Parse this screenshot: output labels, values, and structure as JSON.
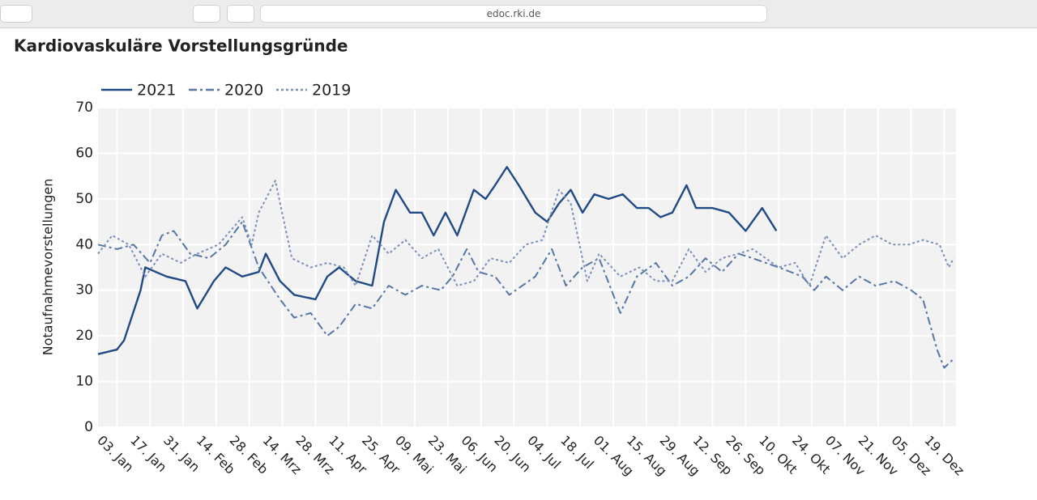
{
  "browser": {
    "url": "edoc.rki.de"
  },
  "chart_data": {
    "type": "line",
    "title": "Kardiovaskuläre Vorstellungsgründe",
    "ylabel": "Notaufnahmevorstellungen",
    "xlim": [
      -8,
      355
    ],
    "ylim": [
      0,
      70
    ],
    "yticks": [
      0,
      10,
      20,
      30,
      40,
      50,
      60,
      70
    ],
    "xticks": [
      {
        "value": 0,
        "label": "03. Jan"
      },
      {
        "value": 14,
        "label": "17. Jan"
      },
      {
        "value": 28,
        "label": "31. Jan"
      },
      {
        "value": 42,
        "label": "14. Feb"
      },
      {
        "value": 56,
        "label": "28. Feb"
      },
      {
        "value": 70,
        "label": "14. Mrz"
      },
      {
        "value": 84,
        "label": "28. Mrz"
      },
      {
        "value": 98,
        "label": "11. Apr"
      },
      {
        "value": 112,
        "label": "25. Apr"
      },
      {
        "value": 126,
        "label": "09. Mai"
      },
      {
        "value": 140,
        "label": "23. Mai"
      },
      {
        "value": 154,
        "label": "06. Jun"
      },
      {
        "value": 168,
        "label": "20. Jun"
      },
      {
        "value": 182,
        "label": "04. Jul"
      },
      {
        "value": 196,
        "label": "18. Jul"
      },
      {
        "value": 210,
        "label": "01. Aug"
      },
      {
        "value": 224,
        "label": "15. Aug"
      },
      {
        "value": 238,
        "label": "29. Aug"
      },
      {
        "value": 252,
        "label": "12. Sep"
      },
      {
        "value": 266,
        "label": "26. Sep"
      },
      {
        "value": 280,
        "label": "10. Okt"
      },
      {
        "value": 294,
        "label": "24. Okt"
      },
      {
        "value": 308,
        "label": "07. Nov"
      },
      {
        "value": 322,
        "label": "21. Nov"
      },
      {
        "value": 336,
        "label": "05. Dez"
      },
      {
        "value": 350,
        "label": "19. Dez"
      }
    ],
    "grid": true,
    "legend": "top-left",
    "series": [
      {
        "name": "2021",
        "color": "#1f4a85",
        "dash": "solid",
        "x": [
          -8,
          0,
          3,
          10,
          12,
          21,
          29,
          34,
          41,
          46,
          53,
          60,
          63,
          69,
          75,
          84,
          89,
          94,
          101,
          108,
          113,
          118,
          124,
          129,
          134,
          139,
          144,
          151,
          156,
          160,
          165,
          170,
          177,
          182,
          187,
          192,
          197,
          202,
          208,
          214,
          220,
          225,
          230,
          235,
          241,
          245,
          252,
          259,
          266,
          273,
          279
        ],
        "values": [
          16,
          17,
          19,
          30,
          35,
          33,
          32,
          26,
          32,
          35,
          33,
          34,
          38,
          32,
          29,
          28,
          33,
          35,
          32,
          31,
          45,
          52,
          47,
          47,
          42,
          47,
          42,
          52,
          50,
          53,
          57,
          53,
          47,
          45,
          49,
          52,
          47,
          51,
          50,
          51,
          48,
          48,
          46,
          47,
          53,
          48,
          48,
          47,
          43,
          48,
          43
        ]
      },
      {
        "name": "2020",
        "color": "#5676a6",
        "dash": "dashdot",
        "x": [
          -8,
          0,
          7,
          14,
          19,
          24,
          31,
          39,
          46,
          53,
          60,
          69,
          75,
          82,
          89,
          94,
          101,
          108,
          115,
          122,
          129,
          137,
          142,
          148,
          153,
          160,
          166,
          177,
          184,
          190,
          197,
          204,
          213,
          220,
          228,
          235,
          242,
          249,
          256,
          263,
          269,
          280,
          290,
          295,
          300,
          307,
          314,
          321,
          329,
          336,
          341,
          347,
          350,
          354
        ],
        "values": [
          40,
          39,
          40,
          36,
          42,
          43,
          38,
          37,
          40,
          45,
          35,
          28,
          24,
          25,
          20,
          22,
          27,
          26,
          31,
          29,
          31,
          30,
          33,
          39,
          34,
          33,
          29,
          33,
          39,
          31,
          35,
          37,
          25,
          33,
          36,
          31,
          33,
          37,
          34,
          38,
          37,
          35,
          33,
          30,
          33,
          30,
          33,
          31,
          32,
          30,
          28,
          17,
          13,
          15
        ]
      },
      {
        "name": "2019",
        "color": "#7b90b8",
        "dash": "dot",
        "x": [
          -8,
          -2,
          5,
          12,
          19,
          27,
          34,
          43,
          53,
          57,
          60,
          67,
          74,
          82,
          89,
          96,
          101,
          108,
          115,
          122,
          129,
          136,
          144,
          151,
          158,
          166,
          173,
          180,
          187,
          192,
          199,
          204,
          213,
          221,
          228,
          235,
          242,
          249,
          256,
          263,
          269,
          280,
          287,
          293,
          300,
          307,
          314,
          321,
          328,
          335,
          341,
          348,
          352,
          354
        ],
        "values": [
          38,
          42,
          40,
          33,
          38,
          36,
          38,
          40,
          46,
          40,
          47,
          54,
          37,
          35,
          36,
          35,
          31,
          42,
          38,
          41,
          37,
          39,
          31,
          32,
          37,
          36,
          40,
          41,
          52,
          49,
          32,
          38,
          33,
          35,
          32,
          32,
          39,
          34,
          37,
          38,
          39,
          35,
          36,
          31,
          42,
          37,
          40,
          42,
          40,
          40,
          41,
          40,
          35,
          37
        ]
      }
    ]
  }
}
